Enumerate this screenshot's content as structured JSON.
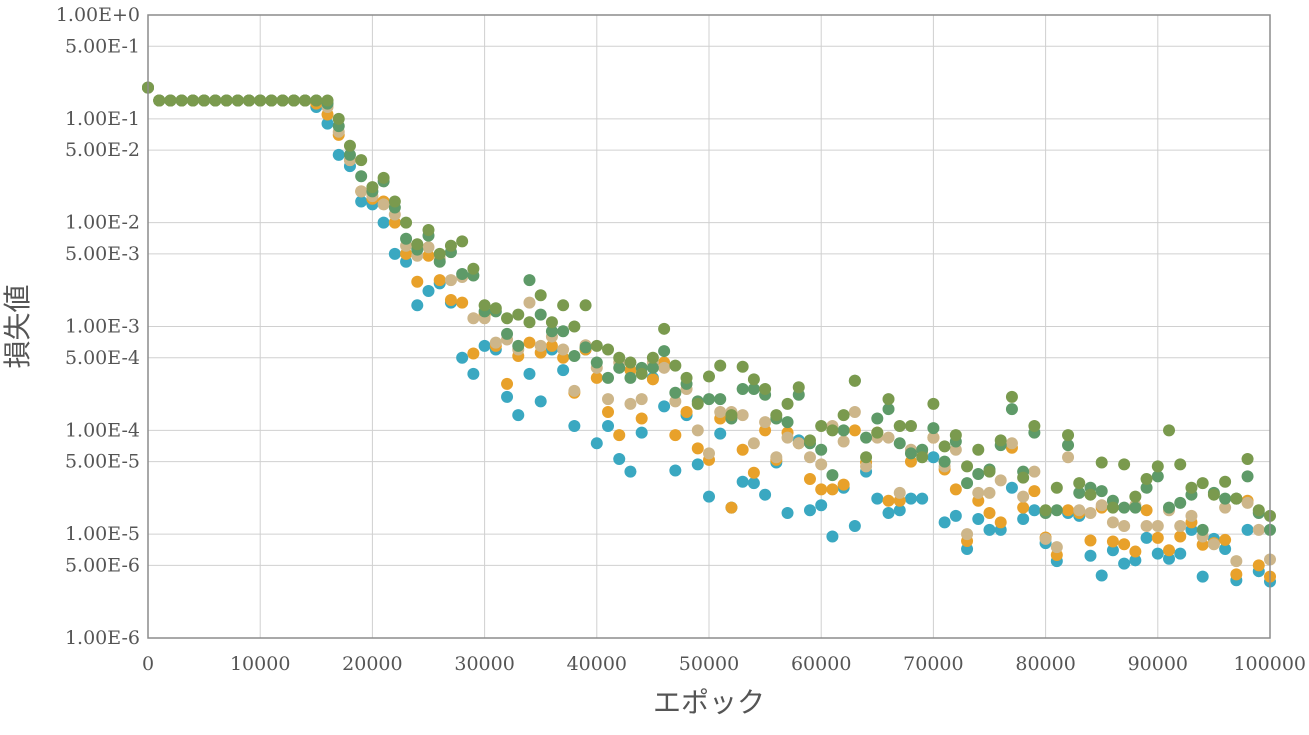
{
  "chart_data": {
    "type": "scatter",
    "title": "",
    "xlabel": "エポック",
    "ylabel": "損失値",
    "xlim": [
      0,
      100000
    ],
    "ylim": [
      1e-06,
      1
    ],
    "yscale": "log",
    "grid": true,
    "legend": "none",
    "x_ticks": [
      0,
      10000,
      20000,
      30000,
      40000,
      50000,
      60000,
      70000,
      80000,
      90000,
      100000
    ],
    "x_tick_labels": [
      "0",
      "10000",
      "20000",
      "30000",
      "40000",
      "50000",
      "60000",
      "70000",
      "80000",
      "90000",
      "100000"
    ],
    "y_ticks": [
      1,
      0.5,
      0.1,
      0.05,
      0.01,
      0.005,
      0.001,
      0.0005,
      0.0001,
      5e-05,
      1e-05,
      5e-06,
      1e-06
    ],
    "y_tick_labels": [
      "1.00E+0",
      "5.00E-1",
      "1.00E-1",
      "5.00E-2",
      "1.00E-2",
      "5.00E-3",
      "1.00E-3",
      "5.00E-4",
      "1.00E-4",
      "5.00E-5",
      "1.00E-5",
      "5.00E-6",
      "1.00E-6"
    ],
    "series": [
      {
        "color": "#3aa8c1",
        "x": [
          0,
          1000,
          2000,
          3000,
          4000,
          5000,
          6000,
          7000,
          8000,
          9000,
          10000,
          11000,
          12000,
          13000,
          14000,
          15000,
          16000,
          17000,
          18000,
          19000,
          20000,
          21000,
          22000,
          23000,
          24000,
          25000,
          26000,
          27000,
          28000,
          29000,
          30000,
          31000,
          32000,
          33000,
          34000,
          35000,
          36000,
          37000,
          38000,
          39000,
          40000,
          41000,
          42000,
          43000,
          44000,
          45000,
          46000,
          47000,
          48000,
          49000,
          50000,
          51000,
          52000,
          53000,
          54000,
          55000,
          56000,
          57000,
          58000,
          59000,
          60000,
          61000,
          62000,
          63000,
          64000,
          65000,
          66000,
          67000,
          68000,
          69000,
          70000,
          71000,
          72000,
          73000,
          74000,
          75000,
          76000,
          77000,
          78000,
          79000,
          80000,
          81000,
          82000,
          83000,
          84000,
          85000,
          86000,
          87000,
          88000,
          89000,
          90000,
          91000,
          92000,
          93000,
          94000,
          95000,
          96000,
          97000,
          98000,
          99000,
          100000
        ],
        "y": [
          0.2,
          0.15,
          0.15,
          0.15,
          0.15,
          0.15,
          0.15,
          0.15,
          0.15,
          0.15,
          0.15,
          0.15,
          0.15,
          0.15,
          0.15,
          0.13,
          0.09,
          0.045,
          0.035,
          0.016,
          0.015,
          0.01,
          0.005,
          0.0042,
          0.0016,
          0.0022,
          0.0026,
          0.0017,
          0.0005,
          0.00035,
          0.00065,
          0.0006,
          0.00021,
          0.00014,
          0.00035,
          0.00019,
          0.0006,
          0.00038,
          0.00011,
          0.0006,
          7.5e-05,
          0.00011,
          5.3e-05,
          4e-05,
          9.5e-05,
          0.00032,
          0.00017,
          4.1e-05,
          0.00014,
          4.7e-05,
          2.3e-05,
          9.3e-05,
          1.8e-05,
          3.2e-05,
          3.1e-05,
          2.4e-05,
          4.9e-05,
          1.6e-05,
          8e-05,
          1.7e-05,
          1.9e-05,
          9.5e-06,
          2.8e-05,
          1.2e-05,
          4e-05,
          2.2e-05,
          1.6e-05,
          1.7e-05,
          2.2e-05,
          2.2e-05,
          5.5e-05,
          1.3e-05,
          1.5e-05,
          7.2e-06,
          1.4e-05,
          1.1e-05,
          1.1e-05,
          2.8e-05,
          1.4e-05,
          1.7e-05,
          8.2e-06,
          5.5e-06,
          1.6e-05,
          1.5e-05,
          6.2e-06,
          4e-06,
          7e-06,
          5.2e-06,
          5.6e-06,
          9.2e-06,
          6.5e-06,
          5.8e-06,
          6.5e-06,
          1.1e-05,
          3.9e-06,
          9e-06,
          7.2e-06,
          3.6e-06,
          1.1e-05,
          4.4e-06,
          3.5e-06
        ]
      },
      {
        "color": "#e8a12a",
        "x": [
          0,
          1000,
          2000,
          3000,
          4000,
          5000,
          6000,
          7000,
          8000,
          9000,
          10000,
          11000,
          12000,
          13000,
          14000,
          15000,
          16000,
          17000,
          18000,
          19000,
          20000,
          21000,
          22000,
          23000,
          24000,
          25000,
          26000,
          27000,
          28000,
          29000,
          30000,
          31000,
          32000,
          33000,
          34000,
          35000,
          36000,
          37000,
          38000,
          39000,
          40000,
          41000,
          42000,
          43000,
          44000,
          45000,
          46000,
          47000,
          48000,
          49000,
          50000,
          51000,
          52000,
          53000,
          54000,
          55000,
          56000,
          57000,
          58000,
          59000,
          60000,
          61000,
          62000,
          63000,
          64000,
          65000,
          66000,
          67000,
          68000,
          69000,
          70000,
          71000,
          72000,
          73000,
          74000,
          75000,
          76000,
          77000,
          78000,
          79000,
          80000,
          81000,
          82000,
          83000,
          84000,
          85000,
          86000,
          87000,
          88000,
          89000,
          90000,
          91000,
          92000,
          93000,
          94000,
          95000,
          96000,
          97000,
          98000,
          99000,
          100000
        ],
        "y": [
          0.2,
          0.15,
          0.15,
          0.15,
          0.15,
          0.15,
          0.15,
          0.15,
          0.15,
          0.15,
          0.15,
          0.15,
          0.15,
          0.15,
          0.15,
          0.14,
          0.11,
          0.07,
          0.04,
          0.02,
          0.017,
          0.016,
          0.01,
          0.005,
          0.0027,
          0.0048,
          0.0028,
          0.0018,
          0.0017,
          0.00055,
          0.0013,
          0.00065,
          0.00028,
          0.00052,
          0.0007,
          0.00056,
          0.00065,
          0.0005,
          0.00023,
          0.0006,
          0.00032,
          0.00015,
          9e-05,
          0.00038,
          0.00013,
          0.00031,
          0.00045,
          9e-05,
          0.00015,
          6.7e-05,
          5.2e-05,
          0.00013,
          1.8e-05,
          6.5e-05,
          3.9e-05,
          0.0001,
          5.2e-05,
          9.5e-05,
          7.5e-05,
          3.4e-05,
          2.7e-05,
          2.7e-05,
          3e-05,
          0.0001,
          4.9e-05,
          9.5e-05,
          2.1e-05,
          2.1e-05,
          5e-05,
          6e-05,
          8.5e-05,
          4.2e-05,
          2.7e-05,
          8.6e-06,
          2.1e-05,
          1.6e-05,
          1.3e-05,
          6.8e-05,
          1.8e-05,
          2.6e-05,
          9.3e-06,
          6.3e-06,
          1.7e-05,
          1.6e-05,
          8.7e-06,
          1.8e-05,
          8.5e-06,
          8e-06,
          6.8e-06,
          1.7e-05,
          9.2e-06,
          7e-06,
          9.5e-06,
          1.3e-05,
          7.9e-06,
          8.2e-06,
          8.8e-06,
          4.1e-06,
          2.1e-05,
          5e-06,
          3.9e-06
        ]
      },
      {
        "color": "#cdb68a",
        "x": [
          0,
          1000,
          2000,
          3000,
          4000,
          5000,
          6000,
          7000,
          8000,
          9000,
          10000,
          11000,
          12000,
          13000,
          14000,
          15000,
          16000,
          17000,
          18000,
          19000,
          20000,
          21000,
          22000,
          23000,
          24000,
          25000,
          26000,
          27000,
          28000,
          29000,
          30000,
          31000,
          32000,
          33000,
          34000,
          35000,
          36000,
          37000,
          38000,
          39000,
          40000,
          41000,
          42000,
          43000,
          44000,
          45000,
          46000,
          47000,
          48000,
          49000,
          50000,
          51000,
          52000,
          53000,
          54000,
          55000,
          56000,
          57000,
          58000,
          59000,
          60000,
          61000,
          62000,
          63000,
          64000,
          65000,
          66000,
          67000,
          68000,
          69000,
          70000,
          71000,
          72000,
          73000,
          74000,
          75000,
          76000,
          77000,
          78000,
          79000,
          80000,
          81000,
          82000,
          83000,
          84000,
          85000,
          86000,
          87000,
          88000,
          89000,
          90000,
          91000,
          92000,
          93000,
          94000,
          95000,
          96000,
          97000,
          98000,
          99000,
          100000
        ],
        "y": [
          0.2,
          0.15,
          0.15,
          0.15,
          0.15,
          0.15,
          0.15,
          0.15,
          0.15,
          0.15,
          0.15,
          0.15,
          0.15,
          0.15,
          0.15,
          0.15,
          0.13,
          0.075,
          0.04,
          0.02,
          0.018,
          0.015,
          0.012,
          0.006,
          0.0048,
          0.0058,
          0.0045,
          0.0028,
          0.003,
          0.0012,
          0.0012,
          0.0007,
          0.00075,
          0.0006,
          0.0017,
          0.00065,
          0.0008,
          0.0006,
          0.00024,
          0.00066,
          0.0004,
          0.0002,
          0.00045,
          0.00018,
          0.0002,
          0.00045,
          0.0004,
          0.00019,
          0.00025,
          0.0001,
          6e-05,
          0.00015,
          0.00015,
          0.00014,
          7.5e-05,
          0.00012,
          5.5e-05,
          8.5e-05,
          7.5e-05,
          5.5e-05,
          4.7e-05,
          0.00011,
          7.8e-05,
          0.00015,
          4.5e-05,
          8.5e-05,
          8.5e-05,
          2.5e-05,
          6.5e-05,
          5.8e-05,
          8.5e-05,
          4.5e-05,
          6.5e-05,
          1e-05,
          2.5e-05,
          2.5e-05,
          3.3e-05,
          7.5e-05,
          2.3e-05,
          4e-05,
          9e-06,
          7.5e-06,
          5.5e-05,
          1.7e-05,
          1.6e-05,
          1.9e-05,
          1.3e-05,
          1.2e-05,
          1.9e-05,
          1.2e-05,
          1.2e-05,
          1.7e-05,
          1.2e-05,
          1.5e-05,
          9.5e-06,
          8e-06,
          1.8e-05,
          5.5e-06,
          2e-05,
          1.1e-05,
          5.7e-06
        ]
      },
      {
        "color": "#5e9a68",
        "x": [
          0,
          1000,
          2000,
          3000,
          4000,
          5000,
          6000,
          7000,
          8000,
          9000,
          10000,
          11000,
          12000,
          13000,
          14000,
          15000,
          16000,
          17000,
          18000,
          19000,
          20000,
          21000,
          22000,
          23000,
          24000,
          25000,
          26000,
          27000,
          28000,
          29000,
          30000,
          31000,
          32000,
          33000,
          34000,
          35000,
          36000,
          37000,
          38000,
          39000,
          40000,
          41000,
          42000,
          43000,
          44000,
          45000,
          46000,
          47000,
          48000,
          49000,
          50000,
          51000,
          52000,
          53000,
          54000,
          55000,
          56000,
          57000,
          58000,
          59000,
          60000,
          61000,
          62000,
          63000,
          64000,
          65000,
          66000,
          67000,
          68000,
          69000,
          70000,
          71000,
          72000,
          73000,
          74000,
          75000,
          76000,
          77000,
          78000,
          79000,
          80000,
          81000,
          82000,
          83000,
          84000,
          85000,
          86000,
          87000,
          88000,
          89000,
          90000,
          91000,
          92000,
          93000,
          94000,
          95000,
          96000,
          97000,
          98000,
          99000,
          100000
        ],
        "y": [
          0.2,
          0.15,
          0.15,
          0.15,
          0.15,
          0.15,
          0.15,
          0.15,
          0.15,
          0.15,
          0.15,
          0.15,
          0.15,
          0.15,
          0.15,
          0.15,
          0.14,
          0.085,
          0.045,
          0.028,
          0.02,
          0.025,
          0.014,
          0.007,
          0.0055,
          0.0075,
          0.0042,
          0.0052,
          0.0032,
          0.0031,
          0.0014,
          0.0014,
          0.00085,
          0.00065,
          0.0028,
          0.0013,
          0.0009,
          0.0009,
          0.00052,
          0.00063,
          0.00045,
          0.00032,
          0.0004,
          0.00032,
          0.0004,
          0.0004,
          0.00058,
          0.00023,
          0.00028,
          0.00019,
          0.0002,
          0.0002,
          0.00013,
          0.00025,
          0.00025,
          0.00022,
          0.00013,
          0.00012,
          0.00022,
          7.5e-05,
          6.5e-05,
          3.7e-05,
          0.0001,
          0.0003,
          8.5e-05,
          0.00013,
          0.00016,
          7.5e-05,
          6e-05,
          6.5e-05,
          0.000105,
          5e-05,
          7.8e-05,
          3.1e-05,
          3.8e-05,
          4.2e-05,
          7.2e-05,
          0.00016,
          4e-05,
          9.5e-05,
          1.6e-05,
          1.7e-05,
          7.2e-05,
          2.5e-05,
          2.8e-05,
          2.6e-05,
          2.1e-05,
          1.8e-05,
          1.8e-05,
          2.8e-05,
          3.6e-05,
          1.8e-05,
          2e-05,
          2.4e-05,
          1.1e-05,
          2.5e-05,
          2.2e-05,
          2.2e-05,
          3.6e-05,
          1.6e-05,
          1.1e-05
        ]
      },
      {
        "color": "#7a9a4e",
        "x": [
          0,
          1000,
          2000,
          3000,
          4000,
          5000,
          6000,
          7000,
          8000,
          9000,
          10000,
          11000,
          12000,
          13000,
          14000,
          15000,
          16000,
          17000,
          18000,
          19000,
          20000,
          21000,
          22000,
          23000,
          24000,
          25000,
          26000,
          27000,
          28000,
          29000,
          30000,
          31000,
          32000,
          33000,
          34000,
          35000,
          36000,
          37000,
          38000,
          39000,
          40000,
          41000,
          42000,
          43000,
          44000,
          45000,
          46000,
          47000,
          48000,
          49000,
          50000,
          51000,
          52000,
          53000,
          54000,
          55000,
          56000,
          57000,
          58000,
          59000,
          60000,
          61000,
          62000,
          63000,
          64000,
          65000,
          66000,
          67000,
          68000,
          69000,
          70000,
          71000,
          72000,
          73000,
          74000,
          75000,
          76000,
          77000,
          78000,
          79000,
          80000,
          81000,
          82000,
          83000,
          84000,
          85000,
          86000,
          87000,
          88000,
          89000,
          90000,
          91000,
          92000,
          93000,
          94000,
          95000,
          96000,
          97000,
          98000,
          99000,
          100000
        ],
        "y": [
          0.2,
          0.15,
          0.15,
          0.15,
          0.15,
          0.15,
          0.15,
          0.15,
          0.15,
          0.15,
          0.15,
          0.15,
          0.15,
          0.15,
          0.15,
          0.15,
          0.15,
          0.1,
          0.055,
          0.04,
          0.022,
          0.027,
          0.016,
          0.01,
          0.0062,
          0.0085,
          0.005,
          0.006,
          0.0066,
          0.0036,
          0.0016,
          0.0015,
          0.0012,
          0.0013,
          0.0011,
          0.002,
          0.0011,
          0.0016,
          0.001,
          0.0016,
          0.00065,
          0.0006,
          0.0005,
          0.00045,
          0.00035,
          0.0005,
          0.00095,
          0.00042,
          0.00032,
          0.00018,
          0.00033,
          0.00042,
          0.00014,
          0.00041,
          0.00031,
          0.00025,
          0.00014,
          0.00018,
          0.00026,
          8e-05,
          0.00011,
          0.0001,
          0.00014,
          0.0003,
          5.5e-05,
          9.5e-05,
          0.0002,
          0.00011,
          0.00011,
          5.5e-05,
          0.00018,
          7e-05,
          9e-05,
          4.5e-05,
          6.5e-05,
          4e-05,
          8e-05,
          0.00021,
          3.5e-05,
          0.00011,
          1.7e-05,
          2.8e-05,
          9e-05,
          3.1e-05,
          2.4e-05,
          4.9e-05,
          1.8e-05,
          4.7e-05,
          2.3e-05,
          3.4e-05,
          4.5e-05,
          0.0001,
          4.7e-05,
          2.8e-05,
          3.1e-05,
          2.4e-05,
          3.2e-05,
          2.2e-05,
          5.3e-05,
          1.7e-05,
          1.5e-05
        ]
      }
    ]
  }
}
